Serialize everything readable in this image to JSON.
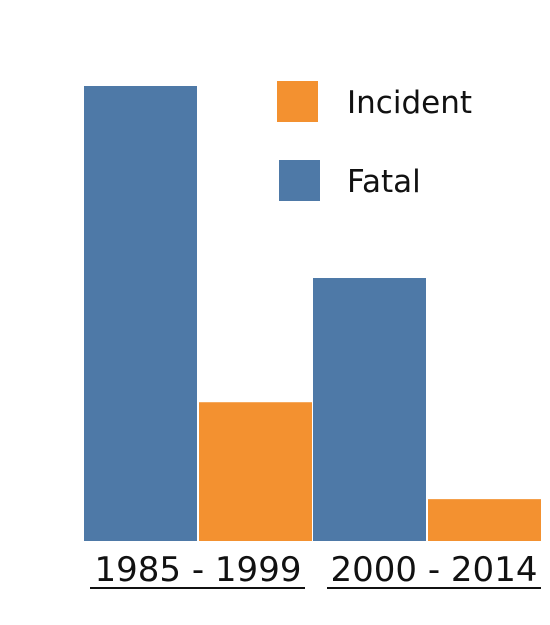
{
  "colors": {
    "incident": "#f39130",
    "fatal": "#4e79a7",
    "text": "#111111"
  },
  "legend": {
    "placement": "top-right",
    "items": [
      {
        "label": "Incident",
        "color": "#f39130"
      },
      {
        "label": "Fatal",
        "color": "#4e79a7"
      }
    ]
  },
  "chart_data": {
    "type": "bar",
    "categories": [
      "1985 - 1999",
      "2000 - 2014"
    ],
    "series": [
      {
        "name": "Fatal",
        "values": [
          100,
          57.8
        ]
      },
      {
        "name": "Incident",
        "values": [
          30.5,
          9.2
        ]
      }
    ],
    "title": "",
    "xlabel": "",
    "ylabel": "",
    "ylim": [
      0,
      100
    ],
    "grid": false,
    "y_axis_visible": false
  }
}
